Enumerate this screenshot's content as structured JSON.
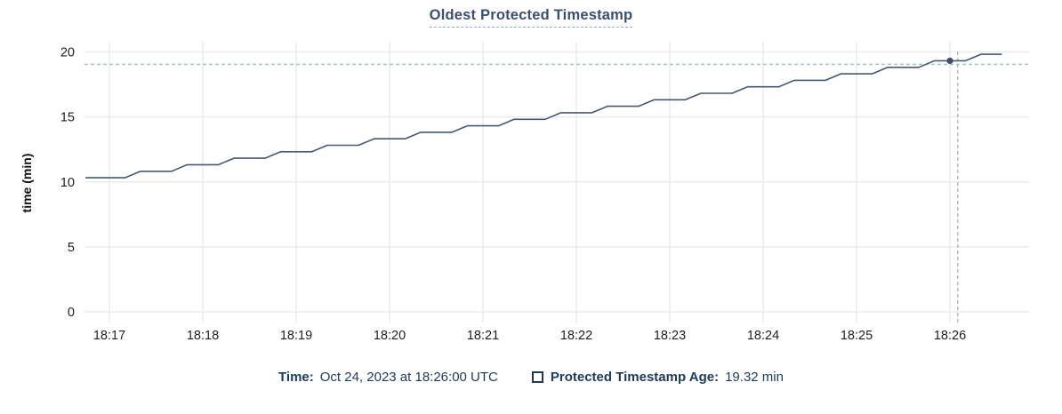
{
  "chart": {
    "title": "Oldest Protected Timestamp",
    "legend": {
      "time_label": "Time:",
      "time_value": "Oct 24, 2023 at 18:26:00 UTC",
      "series_label": "Protected Timestamp Age:",
      "series_value": "19.32 min"
    }
  },
  "chart_data": {
    "type": "line",
    "title": "Oldest Protected Timestamp",
    "xlabel": "",
    "ylabel": "time (min)",
    "x_ticks": [
      "18:17",
      "18:18",
      "18:19",
      "18:20",
      "18:21",
      "18:22",
      "18:23",
      "18:24",
      "18:25",
      "18:26"
    ],
    "y_ticks": [
      0,
      5,
      10,
      15,
      20
    ],
    "ylim": [
      0,
      20
    ],
    "x_range": [
      "18:16:45",
      "18:26:33"
    ],
    "grid": true,
    "legend_position": "bottom",
    "series": [
      {
        "name": "Protected Timestamp Age",
        "unit": "min",
        "points": [
          [
            "18:16:45",
            10.32
          ],
          [
            "18:17:10",
            10.32
          ],
          [
            "18:17:20",
            10.82
          ],
          [
            "18:17:40",
            10.82
          ],
          [
            "18:17:50",
            11.32
          ],
          [
            "18:18:10",
            11.32
          ],
          [
            "18:18:20",
            11.82
          ],
          [
            "18:18:40",
            11.82
          ],
          [
            "18:18:50",
            12.32
          ],
          [
            "18:19:10",
            12.32
          ],
          [
            "18:19:20",
            12.82
          ],
          [
            "18:19:40",
            12.82
          ],
          [
            "18:19:50",
            13.32
          ],
          [
            "18:20:10",
            13.32
          ],
          [
            "18:20:20",
            13.82
          ],
          [
            "18:20:40",
            13.82
          ],
          [
            "18:20:50",
            14.32
          ],
          [
            "18:21:10",
            14.32
          ],
          [
            "18:21:20",
            14.82
          ],
          [
            "18:21:40",
            14.82
          ],
          [
            "18:21:50",
            15.32
          ],
          [
            "18:22:10",
            15.32
          ],
          [
            "18:22:20",
            15.82
          ],
          [
            "18:22:40",
            15.82
          ],
          [
            "18:22:50",
            16.32
          ],
          [
            "18:23:10",
            16.32
          ],
          [
            "18:23:20",
            16.82
          ],
          [
            "18:23:40",
            16.82
          ],
          [
            "18:23:50",
            17.32
          ],
          [
            "18:24:10",
            17.32
          ],
          [
            "18:24:20",
            17.82
          ],
          [
            "18:24:40",
            17.82
          ],
          [
            "18:24:50",
            18.32
          ],
          [
            "18:25:10",
            18.32
          ],
          [
            "18:25:20",
            18.82
          ],
          [
            "18:25:40",
            18.82
          ],
          [
            "18:25:50",
            19.32
          ],
          [
            "18:26:10",
            19.32
          ],
          [
            "18:26:20",
            19.82
          ],
          [
            "18:26:33",
            19.82
          ]
        ]
      }
    ],
    "highlight_point": {
      "time": "18:26:00",
      "value": 19.32
    },
    "crosshair": {
      "time": "18:26:05",
      "value": 19.05
    },
    "colors": {
      "line": "#475872",
      "highlight_dot": "#3f506b",
      "grid": "#ebebeb",
      "crosshair": "#a9c0c8",
      "tick_text": "#1c1e21",
      "axis_title_text": "#111111",
      "title_text": "#3b506e",
      "legend_text": "#1d3a5a"
    }
  }
}
